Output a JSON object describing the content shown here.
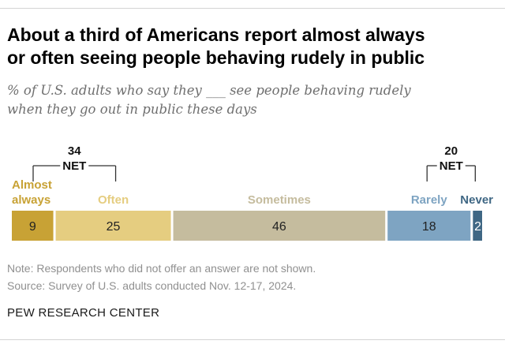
{
  "header": {
    "title_line1": "About a third of Americans report almost always",
    "title_line2": "or often seeing people behaving rudely in public",
    "subtitle_line1": "% of U.S. adults who say they ___ see people behaving rudely",
    "subtitle_line2": "when they go out in public these days"
  },
  "chart_data": {
    "type": "bar",
    "orientation": "horizontal-stacked",
    "categories": [
      "Almost always",
      "Often",
      "Sometimes",
      "Rarely",
      "Never"
    ],
    "values": [
      9,
      25,
      46,
      18,
      2
    ],
    "value_labels": [
      "9",
      "25",
      "46",
      "18",
      "2"
    ],
    "colors": [
      "#c8a235",
      "#e5cd80",
      "#c5bc9e",
      "#7ea4c2",
      "#3f6784"
    ],
    "label_colors": [
      "#c8a235",
      "#e5cd80",
      "#c5bc9e",
      "#7ea4c2",
      "#3f6784"
    ],
    "nets": [
      {
        "value": "34",
        "label": "NET",
        "from": 0,
        "to": 1
      },
      {
        "value": "20",
        "label": "NET",
        "from": 3,
        "to": 4
      }
    ],
    "xlim": [
      0,
      100
    ]
  },
  "footer": {
    "note": "Note: Respondents who did not offer an answer are not shown.",
    "source": "Source: Survey of U.S. adults conducted Nov. 12-17, 2024.",
    "brand": "PEW RESEARCH CENTER"
  }
}
